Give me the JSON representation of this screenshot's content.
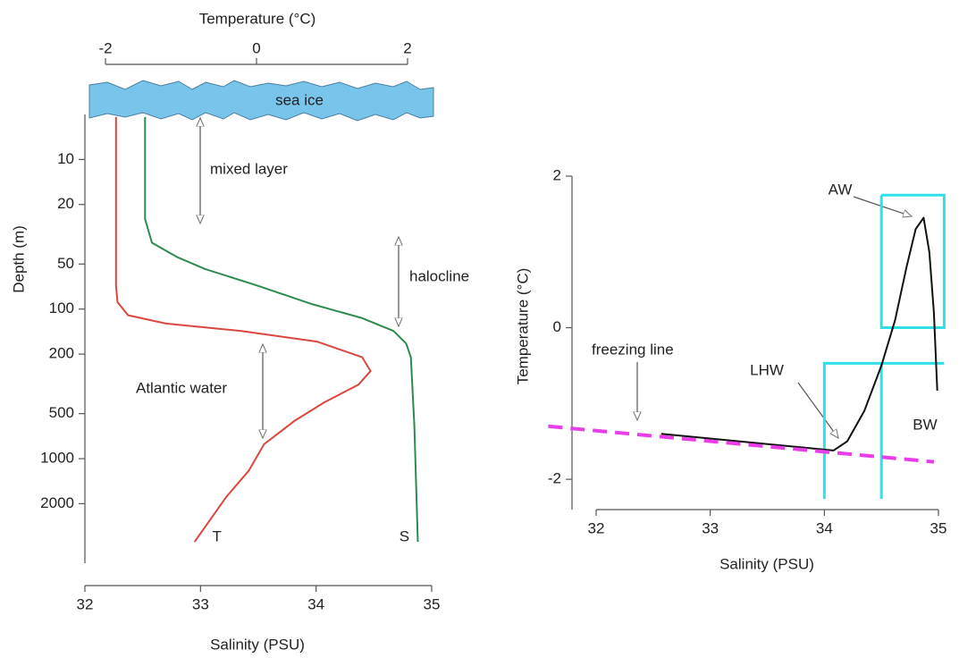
{
  "chart_data": [
    {
      "type": "line",
      "x_label": "Salinity (PSU)",
      "x2_label": "Temperature (°C)",
      "y_label": "Depth (m)",
      "xlim": [
        32,
        35
      ],
      "xticks": [
        32,
        33,
        34,
        35
      ],
      "x2lim": [
        -2,
        2
      ],
      "x2ticks": [
        -2,
        0,
        2
      ],
      "ylim": [
        5,
        5000
      ],
      "yticks": [
        10,
        20,
        50,
        100,
        200,
        500,
        1000,
        2000
      ],
      "y_scale": "log",
      "y_inverted": true,
      "series": [
        {
          "name": "T",
          "color": "#d9473f",
          "axis": "x2",
          "x": [
            -1.86,
            -1.86,
            -1.86,
            -1.84,
            -1.7,
            -1.2,
            -0.2,
            0.8,
            1.4,
            1.51,
            1.35,
            0.9,
            0.5,
            0.1,
            -0.1,
            -0.4,
            -0.82
          ],
          "y": [
            5.2,
            30,
            70,
            90,
            110,
            125,
            140,
            165,
            210,
            260,
            320,
            420,
            560,
            800,
            1200,
            1800,
            3600
          ]
        },
        {
          "name": "S",
          "color": "#2e8b4e",
          "x": [
            32.52,
            32.52,
            32.58,
            32.8,
            33.04,
            33.5,
            33.97,
            34.4,
            34.67,
            34.78,
            34.82,
            34.85,
            34.88
          ],
          "y": [
            5.2,
            25,
            36,
            45,
            54,
            70,
            93,
            115,
            140,
            170,
            210,
            600,
            3600
          ]
        }
      ],
      "annotations": [
        "sea ice",
        "mixed layer",
        "halocline",
        "Atlantic water"
      ]
    },
    {
      "type": "line",
      "x_label": "Salinity (PSU)",
      "y_label": "Temperature (°C)",
      "xlim": [
        32,
        35
      ],
      "xticks": [
        32,
        33,
        34,
        35
      ],
      "ylim": [
        -2.4,
        2
      ],
      "yticks": [
        -2,
        0,
        2
      ],
      "series": [
        {
          "color": "#111111",
          "x": [
            32.57,
            34.08,
            34.2,
            34.35,
            34.5,
            34.62,
            34.72,
            34.8,
            34.87,
            34.92,
            34.96,
            34.99
          ],
          "y": [
            -1.4,
            -1.62,
            -1.5,
            -1.1,
            -0.5,
            0.1,
            0.8,
            1.3,
            1.45,
            1.0,
            0.2,
            -0.83
          ]
        },
        {
          "name": "freezing line",
          "color": "#e83ee8",
          "dashed": true,
          "x": [
            31.58,
            34.96
          ],
          "y": [
            -1.3,
            -1.77
          ]
        }
      ],
      "boxes_color": "#2fe0e8",
      "boxes": [
        {
          "x": [
            34.5,
            35.05,
            35.05,
            34.5,
            34.5
          ],
          "y": [
            1.75,
            1.75,
            0,
            0,
            1.75
          ]
        },
        {
          "x": [
            34,
            34,
            35.05
          ],
          "y": [
            -2.26,
            -0.47,
            -0.47
          ]
        },
        {
          "x": [
            34.5,
            34.5
          ],
          "y": [
            -2.26,
            -0.47
          ]
        }
      ],
      "annotations": [
        "AW",
        "LHW",
        "BW"
      ]
    }
  ]
}
